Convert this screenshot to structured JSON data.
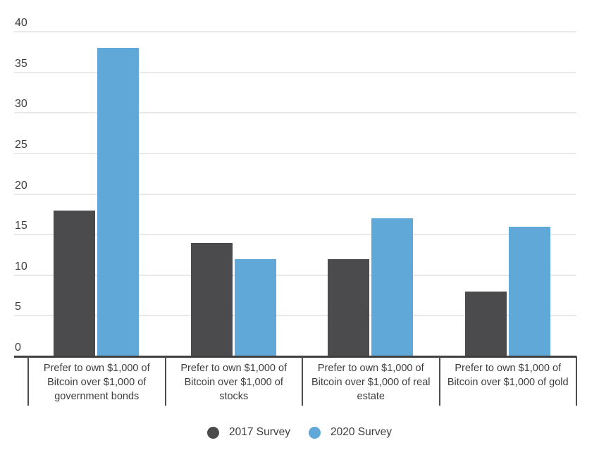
{
  "chart_data": {
    "type": "bar",
    "title": "",
    "xlabel": "",
    "ylabel": "",
    "categories": [
      "Prefer to own $1,000 of Bitcoin over $1,000 of government bonds",
      "Prefer to own $1,000 of Bitcoin over $1,000 of stocks",
      "Prefer to own $1,000 of Bitcoin over $1,000 of real estate",
      "Prefer to own $1,000 of Bitcoin over $1,000 of gold"
    ],
    "series": [
      {
        "name": "2017 Survey",
        "color": "#4b4b4d",
        "values": [
          18,
          14,
          12,
          8
        ]
      },
      {
        "name": "2020 Survey",
        "color": "#5fa8d8",
        "values": [
          38,
          12,
          17,
          16
        ]
      }
    ],
    "ylim": [
      0,
      40
    ],
    "yticks": [
      0,
      5,
      10,
      15,
      20,
      25,
      30,
      35,
      40
    ],
    "grid": true,
    "legend_position": "bottom"
  },
  "colors": {
    "background": "#ffffff",
    "gridline": "#e9e9e9",
    "axis_line": "#3f3f3f",
    "tick_line": "#4d4d4d",
    "text": "#3d3d3d",
    "series_2017": "#4b4b4d",
    "series_2020": "#5fa8d8"
  }
}
